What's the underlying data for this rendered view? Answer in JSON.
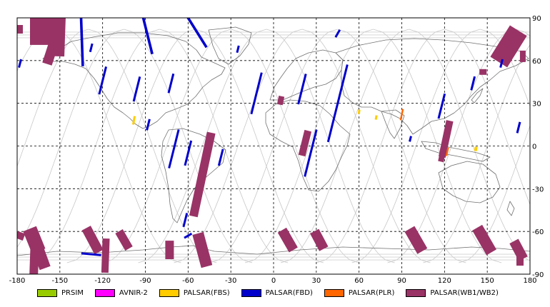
{
  "chart_data": {
    "type": "map",
    "x_ticks": [
      "-180",
      "-150",
      "-120",
      "-90",
      "-60",
      "-30",
      "0",
      "30",
      "60",
      "90",
      "120",
      "150",
      "180"
    ],
    "y_ticks": [
      "90",
      "60",
      "30",
      "0",
      "-30",
      "-60",
      "-90"
    ],
    "xlim": [
      -180,
      180
    ],
    "ylim": [
      -90,
      90
    ],
    "grid": true,
    "legend": [
      {
        "label": "PRSIM",
        "color": "#99cc00"
      },
      {
        "label": "AVNIR-2",
        "color": "#ff00ff"
      },
      {
        "label": "PALSAR(FBS)",
        "color": "#ffcc00"
      },
      {
        "label": "PALSAR(FBD)",
        "color": "#0000cc"
      },
      {
        "label": "PALSAR(PLR)",
        "color": "#ff6600"
      },
      {
        "label": "PALSAR(WB1/WB2)",
        "color": "#993366"
      }
    ],
    "footprints": {
      "wb": [
        {
          "lon": -160,
          "lat": 88,
          "length": 22,
          "width": 34,
          "angle": 90
        },
        {
          "lon": -178,
          "lat": 82,
          "length": 6,
          "width": 4,
          "angle": 0
        },
        {
          "lon": -155,
          "lat": 70,
          "length": 26,
          "width": 7,
          "angle": 18
        },
        {
          "lon": -150,
          "lat": 88,
          "length": 8,
          "width": 50,
          "angle": 92
        },
        {
          "lon": -50,
          "lat": -20,
          "length": 60,
          "width": 6,
          "angle": 12
        },
        {
          "lon": 5,
          "lat": 32,
          "length": 6,
          "width": 4,
          "angle": 12
        },
        {
          "lon": 22,
          "lat": 2,
          "length": 18,
          "width": 5,
          "angle": 14
        },
        {
          "lon": 121,
          "lat": 5,
          "length": 26,
          "width": 5,
          "angle": 12
        },
        {
          "lon": 118,
          "lat": -8,
          "length": 6,
          "width": 4,
          "angle": 12
        },
        {
          "lon": 165,
          "lat": 70,
          "length": 26,
          "width": 14,
          "angle": 32
        },
        {
          "lon": 147,
          "lat": 52,
          "length": 4,
          "width": 5,
          "angle": 0
        },
        {
          "lon": 175,
          "lat": 63,
          "length": 4,
          "width": 8,
          "angle": 90
        },
        {
          "lon": -178,
          "lat": -63,
          "length": 5,
          "width": 6,
          "angle": 20
        },
        {
          "lon": -168,
          "lat": -66,
          "length": 10,
          "width": 17,
          "angle": 68
        },
        {
          "lon": -165,
          "lat": -73,
          "length": 8,
          "width": 27,
          "angle": 70
        },
        {
          "lon": -168,
          "lat": -80,
          "length": 6,
          "width": 30,
          "angle": 92
        },
        {
          "lon": -127,
          "lat": -66,
          "length": 7,
          "width": 19,
          "angle": 62
        },
        {
          "lon": -105,
          "lat": -66,
          "length": 6,
          "width": 14,
          "angle": 60
        },
        {
          "lon": -118,
          "lat": -77,
          "length": 5,
          "width": 24,
          "angle": 92
        },
        {
          "lon": -73,
          "lat": -73,
          "length": 6,
          "width": 13,
          "angle": 90
        },
        {
          "lon": -50,
          "lat": -73,
          "length": 8,
          "width": 24,
          "angle": 75
        },
        {
          "lon": 10,
          "lat": -66,
          "length": 7,
          "width": 16,
          "angle": 60
        },
        {
          "lon": 32,
          "lat": -66,
          "length": 7,
          "width": 14,
          "angle": 62
        },
        {
          "lon": 100,
          "lat": -66,
          "length": 8,
          "width": 18,
          "angle": 60
        },
        {
          "lon": 148,
          "lat": -66,
          "length": 8,
          "width": 20,
          "angle": 60
        },
        {
          "lon": 172,
          "lat": -73,
          "length": 7,
          "width": 14,
          "angle": 62
        },
        {
          "lon": 173,
          "lat": -78,
          "length": 5,
          "width": 12,
          "angle": 90
        }
      ],
      "fbd": [
        {
          "lon": -135,
          "lat": 86,
          "length": 1.8,
          "width": 60,
          "angle": 88
        },
        {
          "lon": -90,
          "lat": 84,
          "length": 1.8,
          "width": 40,
          "angle": 76
        },
        {
          "lon": -55,
          "lat": 82,
          "length": 1.8,
          "width": 30,
          "angle": 58
        },
        {
          "lon": -178,
          "lat": 58,
          "length": 6,
          "width": 1.5,
          "angle": 14
        },
        {
          "lon": -128,
          "lat": 69,
          "length": 6,
          "width": 1.5,
          "angle": 14
        },
        {
          "lon": -120,
          "lat": 46,
          "length": 20,
          "width": 1.5,
          "angle": 14
        },
        {
          "lon": -96,
          "lat": 40,
          "length": 18,
          "width": 1.5,
          "angle": 14
        },
        {
          "lon": -72,
          "lat": 44,
          "length": 14,
          "width": 1.5,
          "angle": 14
        },
        {
          "lon": -88,
          "lat": 15,
          "length": 8,
          "width": 1.5,
          "angle": 14
        },
        {
          "lon": -70,
          "lat": -2,
          "length": 28,
          "width": 1.5,
          "angle": 14
        },
        {
          "lon": -60,
          "lat": -5,
          "length": 18,
          "width": 1.5,
          "angle": 14
        },
        {
          "lon": -37,
          "lat": -8,
          "length": 12,
          "width": 1.5,
          "angle": 14
        },
        {
          "lon": -62,
          "lat": -52,
          "length": 10,
          "width": 1.5,
          "angle": 14
        },
        {
          "lon": -60,
          "lat": -63,
          "length": 6,
          "width": 1.5,
          "angle": 60
        },
        {
          "lon": -128,
          "lat": -76,
          "length": 14,
          "width": 1.5,
          "angle": 95
        },
        {
          "lon": -25,
          "lat": 68,
          "length": 5,
          "width": 1.5,
          "angle": 14
        },
        {
          "lon": -12,
          "lat": 37,
          "length": 30,
          "width": 1.5,
          "angle": 14
        },
        {
          "lon": 20,
          "lat": 40,
          "length": 22,
          "width": 1.5,
          "angle": 14
        },
        {
          "lon": 45,
          "lat": 30,
          "length": 56,
          "width": 1.5,
          "angle": 14
        },
        {
          "lon": 26,
          "lat": -5,
          "length": 34,
          "width": 1.5,
          "angle": 14
        },
        {
          "lon": 45,
          "lat": 79,
          "length": 6,
          "width": 1.5,
          "angle": 30
        },
        {
          "lon": 118,
          "lat": 28,
          "length": 18,
          "width": 1.5,
          "angle": 14
        },
        {
          "lon": 140,
          "lat": 44,
          "length": 10,
          "width": 1.5,
          "angle": 14
        },
        {
          "lon": 160,
          "lat": 58,
          "length": 6,
          "width": 1.5,
          "angle": 14
        },
        {
          "lon": 172,
          "lat": 13,
          "length": 8,
          "width": 1.5,
          "angle": 14
        },
        {
          "lon": 96,
          "lat": 5,
          "length": 4,
          "width": 1.5,
          "angle": 14
        }
      ],
      "fbs": [
        {
          "lon": -98,
          "lat": 18,
          "length": 6,
          "width": 1.5,
          "angle": 10
        },
        {
          "lon": 60,
          "lat": 24,
          "length": 3,
          "width": 1.5,
          "angle": 10
        },
        {
          "lon": 72,
          "lat": 20,
          "length": 3,
          "width": 1.5,
          "angle": 10
        },
        {
          "lon": 142,
          "lat": -2,
          "length": 3,
          "width": 2,
          "angle": 10
        }
      ],
      "plr": [
        {
          "lon": 90,
          "lat": 22,
          "length": 8,
          "width": 1.2,
          "angle": 12
        },
        {
          "lon": 122,
          "lat": -4,
          "length": 6,
          "width": 1.2,
          "angle": 12
        }
      ]
    }
  }
}
